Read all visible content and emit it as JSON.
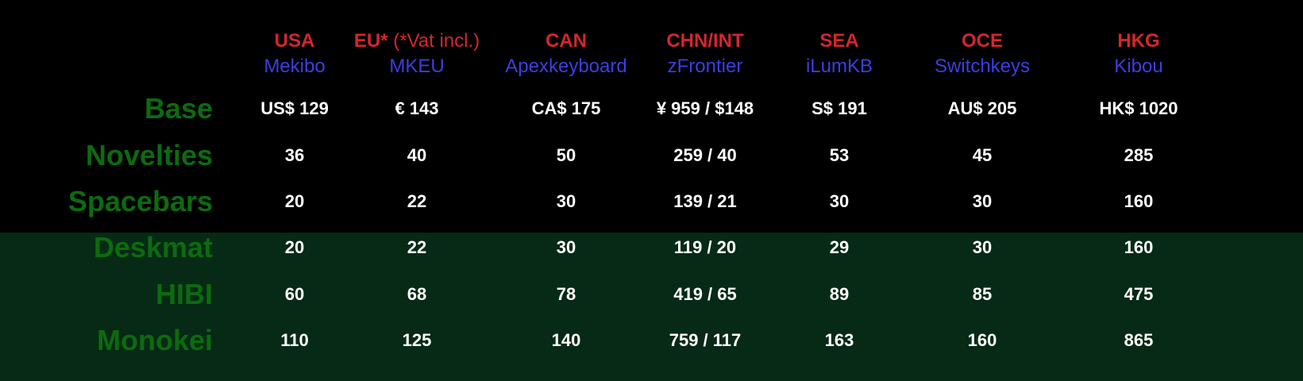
{
  "colors": {
    "region_code": "#d4262d",
    "vendor": "#3b3fe0",
    "row_label": "#0c6b0f",
    "value": "#ffffff",
    "background_top": "#000000",
    "background_bottom": "#062a16"
  },
  "regions": [
    {
      "code": "USA",
      "note": "",
      "vendor": "Mekibo"
    },
    {
      "code": "EU*",
      "note": " (*Vat incl.)",
      "vendor": "MKEU"
    },
    {
      "code": "CAN",
      "note": "",
      "vendor": "Apexkeyboard"
    },
    {
      "code": "CHN/INT",
      "note": "",
      "vendor": "zFrontier"
    },
    {
      "code": "SEA",
      "note": "",
      "vendor": "iLumKB"
    },
    {
      "code": "OCE",
      "note": "",
      "vendor": "Switchkeys"
    },
    {
      "code": "HKG",
      "note": "",
      "vendor": "Kibou"
    }
  ],
  "rows": [
    {
      "label": "Base",
      "values": [
        "US$ 129",
        "€ 143",
        "CA$ 175",
        "¥ 959 / $148",
        "S$ 191",
        "AU$  205",
        "HK$ 1020"
      ]
    },
    {
      "label": "Novelties",
      "values": [
        "36",
        "40",
        "50",
        "259 / 40",
        "53",
        "45",
        "285"
      ]
    },
    {
      "label": "Spacebars",
      "values": [
        "20",
        "22",
        "30",
        "139 / 21",
        "30",
        "30",
        "160"
      ]
    },
    {
      "label": "Deskmat",
      "values": [
        "20",
        "22",
        "30",
        "119 / 20",
        "29",
        "30",
        "160"
      ]
    },
    {
      "label": "HIBI",
      "values": [
        "60",
        "68",
        "78",
        "419 / 65",
        "89",
        "85",
        "475"
      ]
    },
    {
      "label": "Monokei",
      "values": [
        "110",
        "125",
        "140",
        "759 / 117",
        "163",
        "160",
        "865"
      ]
    }
  ]
}
